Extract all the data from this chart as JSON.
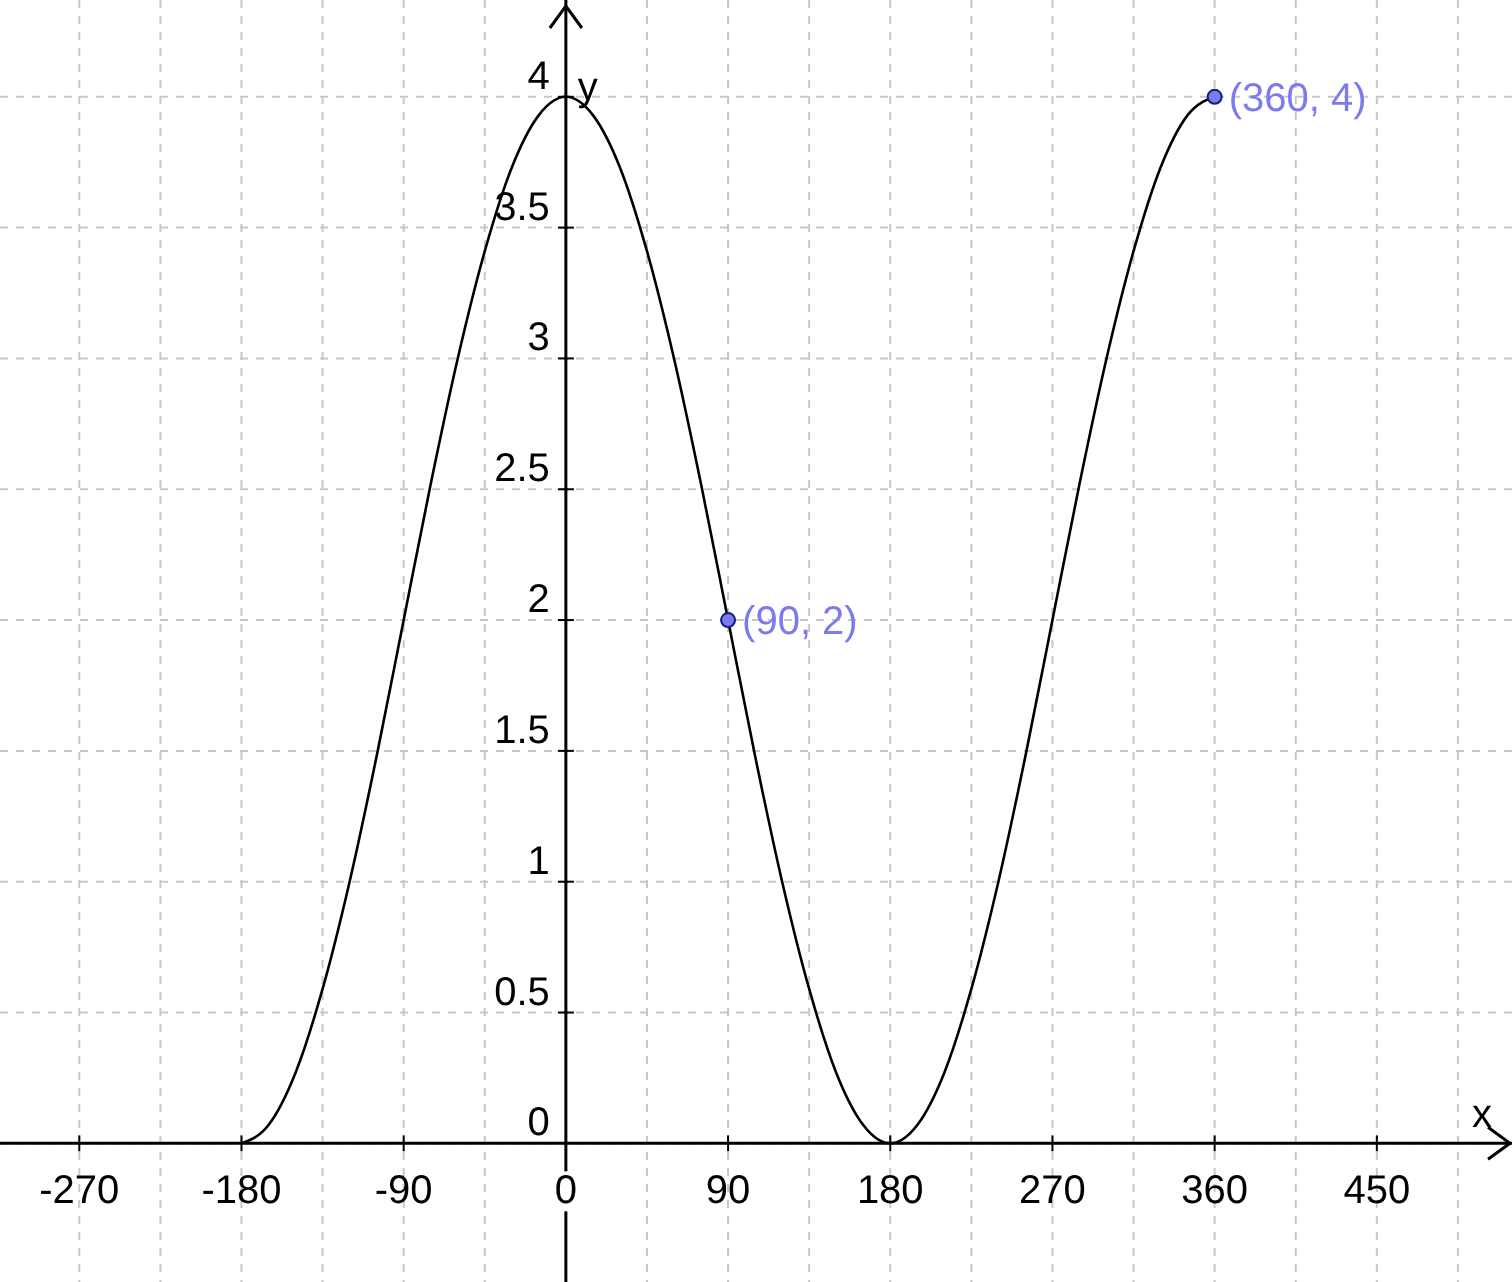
{
  "chart_data": {
    "type": "line",
    "xlabel": "x",
    "ylabel": "y",
    "xlim": [
      -314,
      525
    ],
    "ylim": [
      -0.53,
      4.37
    ],
    "xticks": [
      -270,
      {
        "value": -225,
        "label": null
      },
      -180,
      {
        "value": -135,
        "label": null
      },
      -90,
      {
        "value": -45,
        "label": null
      },
      0,
      {
        "value": 45,
        "label": null
      },
      90,
      {
        "value": 135,
        "label": null
      },
      180,
      {
        "value": 225,
        "label": null
      },
      270,
      {
        "value": 315,
        "label": null
      },
      360,
      {
        "value": 405,
        "label": null
      },
      450,
      {
        "value": 495,
        "label": null
      }
    ],
    "yticks": [
      0,
      0.5,
      1,
      1.5,
      2,
      2.5,
      3,
      3.5,
      4
    ],
    "grid": true,
    "series": [
      {
        "color": "#000000",
        "marker": "none",
        "line_style": "solid",
        "x": [
          -180,
          -165,
          -150,
          -135,
          -120,
          -105,
          -90,
          -75,
          -60,
          -45,
          -30,
          -15,
          0,
          15,
          30,
          45,
          60,
          75,
          90,
          105,
          120,
          135,
          150,
          165,
          180,
          195,
          210,
          225,
          240,
          255,
          270,
          285,
          300,
          315,
          330,
          345,
          360
        ],
        "values": [
          0,
          0.07,
          0.27,
          0.59,
          1,
          1.48,
          2,
          2.52,
          3,
          3.41,
          3.73,
          3.93,
          4,
          3.93,
          3.73,
          3.41,
          3,
          2.52,
          2,
          1.48,
          1,
          0.59,
          0.27,
          0.07,
          0,
          0.07,
          0.27,
          0.59,
          1,
          1.48,
          2,
          2.52,
          3,
          3.41,
          3.73,
          3.93,
          4
        ]
      },
      {
        "type": "scatter",
        "color": "#7b7bf0",
        "marker": "circle",
        "x": [
          90,
          360
        ],
        "values": [
          2,
          4
        ],
        "value_labels": [
          "(90, 2)",
          "(360, 4)"
        ]
      }
    ]
  }
}
